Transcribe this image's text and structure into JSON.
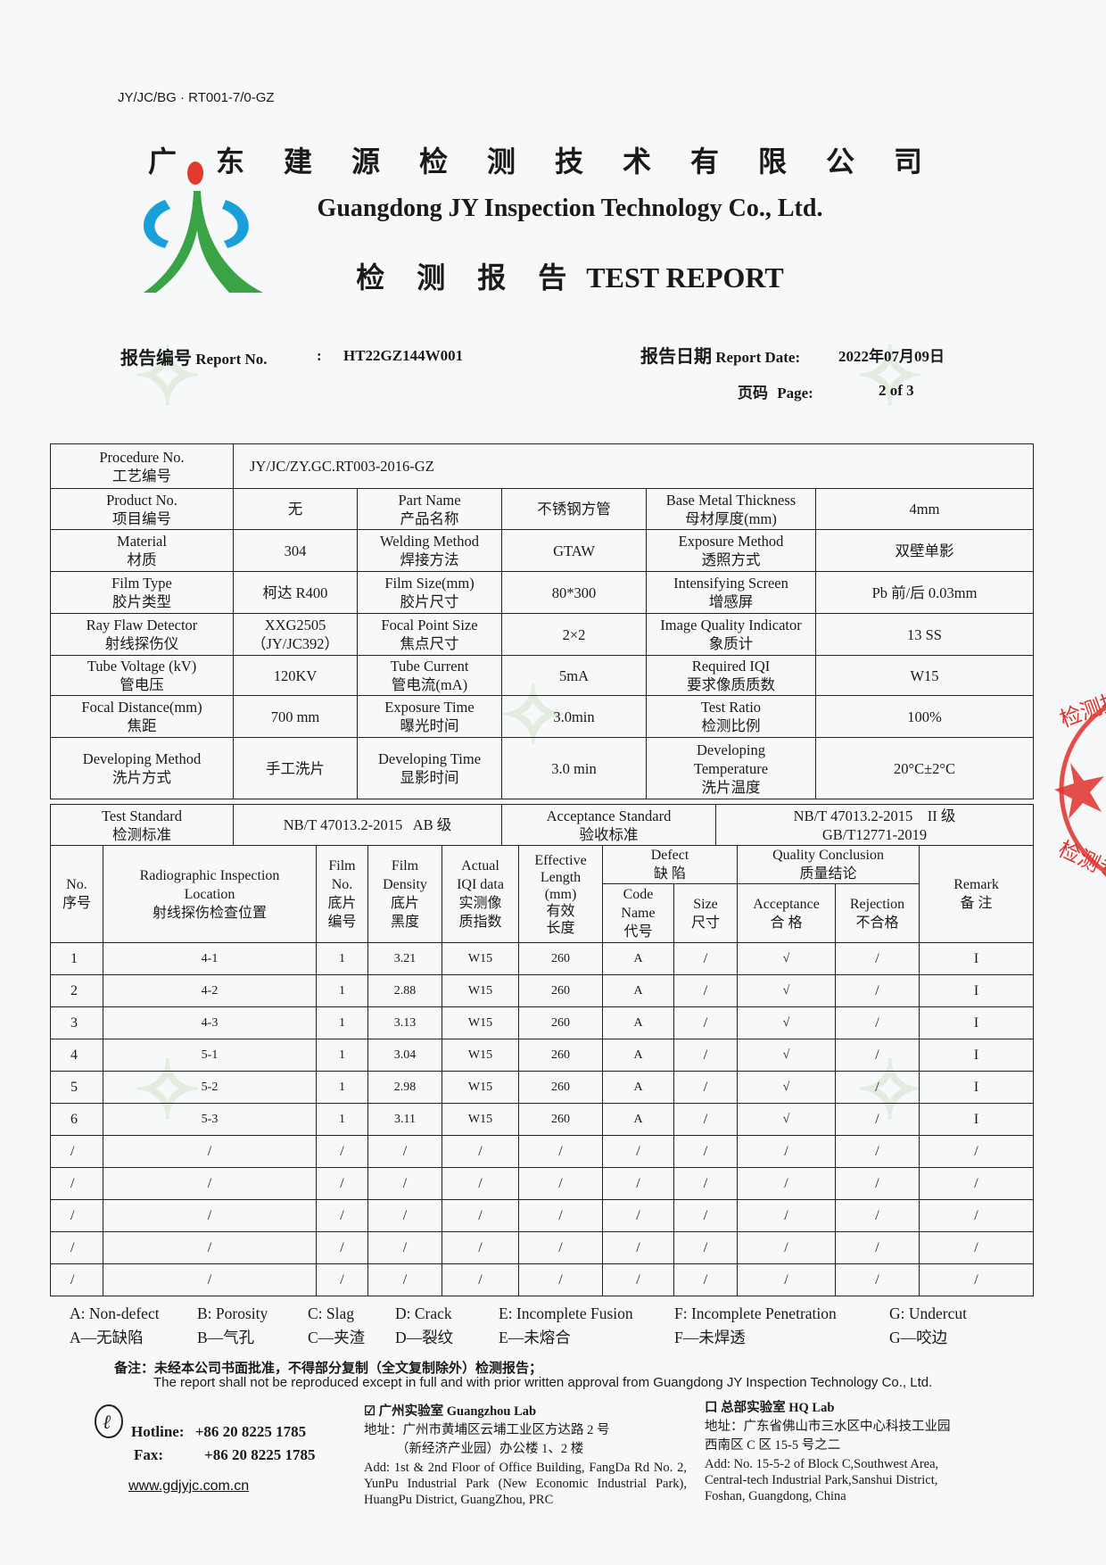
{
  "doc_code": "JY/JC/BG · RT001-7/0-GZ",
  "company": {
    "name_cn": "广 东 建 源 检 测 技 术 有 限 公 司",
    "name_en": "Guangdong JY Inspection Technology Co., Ltd.",
    "report_title_cn": "检 测 报 告",
    "report_title_en": "TEST REPORT"
  },
  "meta": {
    "report_no_cn": "报告编号",
    "report_no_en": "Report No.",
    "colon": ":",
    "report_no": "HT22GZ144W001",
    "date_cn": "报告日期",
    "date_en": "Report Date:",
    "date": "2022年07月09日",
    "page_cn": "页码",
    "page_en": "Page:",
    "page": "2 of 3"
  },
  "info": {
    "procedure": {
      "label_en": "Procedure No.",
      "label_cn": "工艺编号",
      "value": "JY/JC/ZY.GC.RT003-2016-GZ"
    },
    "rows": [
      [
        {
          "en": "Product No.",
          "cn": "项目编号"
        },
        "无",
        {
          "en": "Part Name",
          "cn": "产品名称"
        },
        "不锈钢方管",
        {
          "en": "Base Metal Thickness",
          "cn": "母材厚度(mm)"
        },
        "4mm"
      ],
      [
        {
          "en": "Material",
          "cn": "材质"
        },
        "304",
        {
          "en": "Welding Method",
          "cn": "焊接方法"
        },
        "GTAW",
        {
          "en": "Exposure Method",
          "cn": "透照方式"
        },
        "双壁单影"
      ],
      [
        {
          "en": "Film Type",
          "cn": "胶片类型"
        },
        "柯达 R400",
        {
          "en": "Film Size(mm)",
          "cn": "胶片尺寸"
        },
        "80*300",
        {
          "en": "Intensifying Screen",
          "cn": "增感屏"
        },
        "Pb 前/后 0.03mm"
      ],
      [
        {
          "en": "Ray Flaw Detector",
          "cn": "射线探伤仪"
        },
        "XXG2505\n（JY/JC392）",
        {
          "en": "Focal Point Size",
          "cn": "焦点尺寸"
        },
        "2×2",
        {
          "en": "Image Quality Indicator",
          "cn": "象质计"
        },
        "13 SS"
      ],
      [
        {
          "en": "Tube Voltage (kV)",
          "cn": "管电压"
        },
        "120KV",
        {
          "en": "Tube Current",
          "cn": "管电流(mA)"
        },
        "5mA",
        {
          "en": "Required IQI",
          "cn": "要求像质质数"
        },
        "W15"
      ],
      [
        {
          "en": "Focal Distance(mm)",
          "cn": "焦距"
        },
        "700 mm",
        {
          "en": "Exposure Time",
          "cn": "曝光时间"
        },
        "3.0min",
        {
          "en": "Test Ratio",
          "cn": "检测比例"
        },
        "100%"
      ],
      [
        {
          "en": "Developing Method",
          "cn": "洗片方式"
        },
        "手工洗片",
        {
          "en": "Developing Time",
          "cn": "显影时间"
        },
        "3.0 min",
        {
          "en": "Developing\nTemperature",
          "cn": "洗片温度"
        },
        "20°C±2°C"
      ]
    ],
    "standard": {
      "test_en": "Test Standard",
      "test_cn": "检测标准",
      "test_value": "NB/T 47013.2-2015   AB 级",
      "acc_en": "Acceptance Standard",
      "acc_cn": "验收标准",
      "acc_value_1": "NB/T 47013.2-2015    II 级",
      "acc_value_2": "GB/T12771-2019"
    }
  },
  "results": {
    "headers": {
      "no": "No.\n序号",
      "location": "Radiographic Inspection\nLocation\n射线探伤检查位置",
      "film_no": "Film\nNo.\n底片\n编号",
      "density": "Film\nDensity\n底片\n黑度",
      "iqi": "Actual\nIQI data\n实测像\n质指数",
      "length": "Effective\nLength\n(mm)\n有效\n长度",
      "defect": "Defect\n缺 陷",
      "code": "Code\nName\n代号",
      "size": "Size\n尺寸",
      "quality": "Quality Conclusion\n质量结论",
      "accept": "Acceptance\n合 格",
      "reject": "Rejection\n不合格",
      "remark": "Remark\n备 注"
    },
    "rows": [
      [
        "1",
        "4-1",
        "1",
        "3.21",
        "W15",
        "260",
        "A",
        "/",
        "√",
        "/",
        "I"
      ],
      [
        "2",
        "4-2",
        "1",
        "2.88",
        "W15",
        "260",
        "A",
        "/",
        "√",
        "/",
        "I"
      ],
      [
        "3",
        "4-3",
        "1",
        "3.13",
        "W15",
        "260",
        "A",
        "/",
        "√",
        "/",
        "I"
      ],
      [
        "4",
        "5-1",
        "1",
        "3.04",
        "W15",
        "260",
        "A",
        "/",
        "√",
        "/",
        "I"
      ],
      [
        "5",
        "5-2",
        "1",
        "2.98",
        "W15",
        "260",
        "A",
        "/",
        "√",
        "/",
        "I"
      ],
      [
        "6",
        "5-3",
        "1",
        "3.11",
        "W15",
        "260",
        "A",
        "/",
        "√",
        "/",
        "I"
      ],
      [
        "/",
        "/",
        "/",
        "/",
        "/",
        "/",
        "/",
        "/",
        "/",
        "/",
        "/"
      ],
      [
        "/",
        "/",
        "/",
        "/",
        "/",
        "/",
        "/",
        "/",
        "/",
        "/",
        "/"
      ],
      [
        "/",
        "/",
        "/",
        "/",
        "/",
        "/",
        "/",
        "/",
        "/",
        "/",
        "/"
      ],
      [
        "/",
        "/",
        "/",
        "/",
        "/",
        "/",
        "/",
        "/",
        "/",
        "/",
        "/"
      ],
      [
        "/",
        "/",
        "/",
        "/",
        "/",
        "/",
        "/",
        "/",
        "/",
        "/",
        "/"
      ]
    ]
  },
  "legend": [
    {
      "en": "A: Non-defect",
      "cn": "A—无缺陷"
    },
    {
      "en": "B: Porosity",
      "cn": "B—气孔"
    },
    {
      "en": "C: Slag",
      "cn": "C—夹渣"
    },
    {
      "en": "D: Crack",
      "cn": "D—裂纹"
    },
    {
      "en": "E: Incomplete Fusion",
      "cn": "E—未熔合"
    },
    {
      "en": "F: Incomplete Penetration",
      "cn": "F—未焊透"
    },
    {
      "en": "G: Undercut",
      "cn": "G—咬边"
    }
  ],
  "note": {
    "cn": "备注：未经本公司书面批准，不得部分复制（全文复制除外）检测报告；",
    "en": "The report shall not be reproduced except in full and with prior written approval from Guangdong JY Inspection Technology Co., Ltd."
  },
  "footer": {
    "hotline_label": "Hotline:",
    "hotline": "+86 20 8225 1785",
    "fax_label": "Fax:",
    "fax": "+86 20 8225 1785",
    "website": "www.gdjyjc.com.cn",
    "gz_lab": {
      "checkbox": "☑",
      "title": "广州实验室 Guangzhou Lab",
      "addr_cn_1": "地址：广州市黄埔区云埔工业区方达路 2 号",
      "addr_cn_2": "（新经济产业园）办公楼 1、2 楼",
      "addr_en": "Add: 1st & 2nd Floor of Office Building, FangDa Rd No. 2, YunPu Industrial Park (New Economic Industrial Park), HuangPu District, GuangZhou, PRC"
    },
    "hq_lab": {
      "checkbox": "口",
      "title": "总部实验室 HQ Lab",
      "addr_cn_1": "地址：广东省佛山市三水区中心科技工业园",
      "addr_cn_2": "西南区 C 区 15-5 号之二",
      "addr_en": "Add: No. 15-5-2 of Block C,Southwest Area, Central-tech Industrial Park,Sanshui District, Foshan, Guangdong, China"
    }
  },
  "stamp": {
    "text_top": "检测技",
    "text_bottom": "检测专",
    "color": "#e0302a"
  },
  "colors": {
    "logo_blue": "#1aa0d8",
    "logo_green": "#3aa346",
    "logo_red": "#e23a2e"
  }
}
